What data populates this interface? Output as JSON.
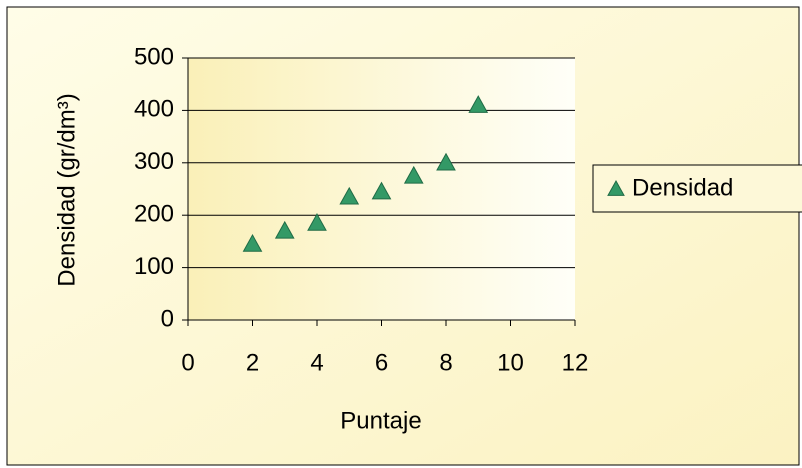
{
  "chart_data": {
    "type": "scatter",
    "x_label": "Puntaje",
    "y_label": "Densidad (gr/dm³)",
    "series": [
      {
        "name": "Densidad",
        "color": "#339966",
        "x": [
          2,
          3,
          4,
          5,
          6,
          7,
          8,
          9
        ],
        "values": [
          145,
          170,
          185,
          235,
          245,
          275,
          300,
          410
        ]
      }
    ],
    "xlim": [
      0,
      12
    ],
    "xticks": [
      0,
      2,
      4,
      6,
      8,
      10,
      12
    ],
    "ylim": [
      0,
      500
    ],
    "yticks": [
      0,
      100,
      200,
      300,
      400,
      500
    ],
    "grid": true,
    "legend": "right"
  }
}
